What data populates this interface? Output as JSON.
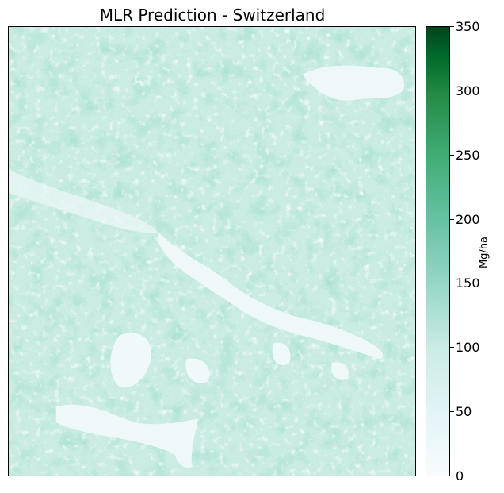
{
  "title": "MLR Prediction - Switzerland",
  "colorbar": {
    "unit_label": "Mg/ha",
    "min": 0,
    "max": 350,
    "ticks": [
      "0",
      "50",
      "100",
      "150",
      "200",
      "250",
      "300",
      "350"
    ],
    "colormap": "BuGn",
    "colors": [
      "#f7fcfd",
      "#e5f5f9",
      "#ccece6",
      "#99d8c9",
      "#66c2a4",
      "#41ae76",
      "#238b45",
      "#006d2c",
      "#00441b"
    ]
  }
}
